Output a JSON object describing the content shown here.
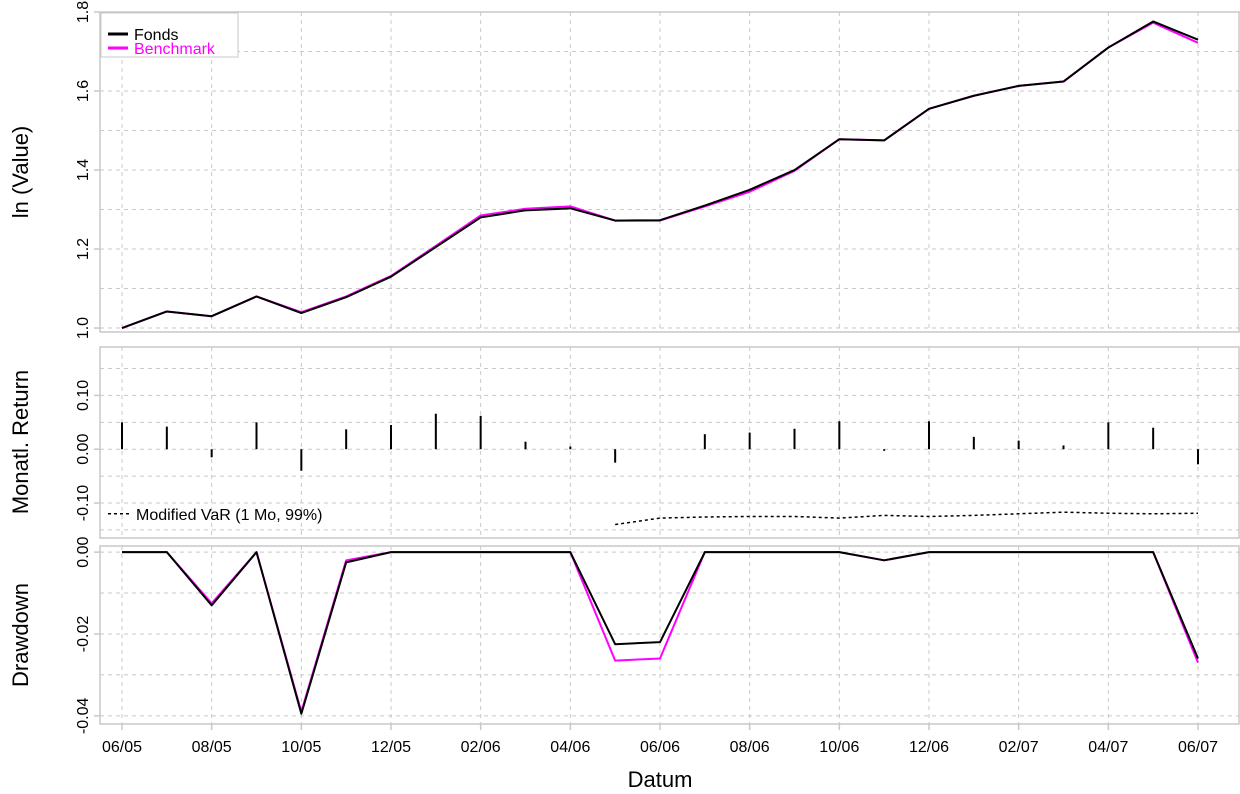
{
  "colors": {
    "fonds": "#000000",
    "benchmark": "#ff00ff",
    "grid": "#c8c8c8"
  },
  "chart_data": {
    "type": "line",
    "x_ticks": [
      "06/05",
      "08/05",
      "10/05",
      "12/05",
      "02/06",
      "04/06",
      "06/06",
      "08/06",
      "10/06",
      "12/06",
      "02/07",
      "04/07",
      "06/07"
    ],
    "xlabel": "Datum",
    "x": [
      "2005-06",
      "2005-07",
      "2005-08",
      "2005-09",
      "2005-10",
      "2005-11",
      "2005-12",
      "2006-01",
      "2006-02",
      "2006-03",
      "2006-04",
      "2006-05",
      "2006-06",
      "2006-07",
      "2006-08",
      "2006-09",
      "2006-10",
      "2006-11",
      "2006-12",
      "2007-01",
      "2007-02",
      "2007-03",
      "2007-04",
      "2007-05",
      "2007-06"
    ],
    "legend": {
      "entries": [
        "Fonds",
        "Benchmark"
      ],
      "position": "top-left"
    },
    "panels": [
      {
        "id": "value",
        "ylabel": "ln (Value)",
        "ylim": [
          0.99,
          1.8
        ],
        "yticks": [
          1.0,
          1.2,
          1.4,
          1.6,
          1.8
        ],
        "ytick_labels": [
          "1.0",
          "1.2",
          "1.4",
          "1.6",
          "1.8"
        ],
        "series": [
          {
            "name": "Fonds",
            "values": [
              1.0,
              1.042,
              1.03,
              1.08,
              1.038,
              1.078,
              1.13,
              1.205,
              1.28,
              1.298,
              1.303,
              1.272,
              1.273,
              1.31,
              1.35,
              1.4,
              1.478,
              1.475,
              1.555,
              1.588,
              1.613,
              1.624,
              1.71,
              1.776,
              1.73
            ]
          },
          {
            "name": "Benchmark",
            "values": [
              1.0,
              1.042,
              1.03,
              1.08,
              1.04,
              1.08,
              1.132,
              1.208,
              1.285,
              1.302,
              1.308,
              1.272,
              1.272,
              1.308,
              1.345,
              1.398,
              1.478,
              1.475,
              1.555,
              1.588,
              1.613,
              1.624,
              1.71,
              1.773,
              1.722
            ]
          }
        ]
      },
      {
        "id": "returns",
        "type": "bar",
        "ylabel": "Monatl. Return",
        "ylim": [
          -0.165,
          0.19
        ],
        "yticks": [
          -0.1,
          0.0,
          0.1
        ],
        "ytick_labels": [
          "-0.10",
          "0.00",
          "0.10"
        ],
        "series": [
          {
            "name": "Fonds",
            "values": [
              0.05,
              0.042,
              -0.015,
              0.05,
              -0.04,
              0.037,
              0.045,
              0.066,
              0.062,
              0.014,
              0.005,
              -0.025,
              0.0,
              0.028,
              0.031,
              0.038,
              0.052,
              -0.003,
              0.052,
              0.023,
              0.016,
              0.007,
              0.05,
              0.04,
              -0.028
            ]
          }
        ],
        "var_line": {
          "label": "Modified VaR (1 Mo, 99%)",
          "x": [
            "2006-05",
            "2006-06",
            "2006-07",
            "2006-08",
            "2006-09",
            "2006-10",
            "2006-11",
            "2006-12",
            "2007-01",
            "2007-02",
            "2007-03",
            "2007-04",
            "2007-05",
            "2007-06"
          ],
          "values": [
            -0.14,
            -0.128,
            -0.126,
            -0.125,
            -0.125,
            -0.128,
            -0.123,
            -0.125,
            -0.123,
            -0.12,
            -0.117,
            -0.119,
            -0.12,
            -0.119
          ]
        }
      },
      {
        "id": "drawdown",
        "ylabel": "Drawdown",
        "ylim": [
          -0.042,
          0.0015
        ],
        "yticks": [
          -0.04,
          -0.02,
          0.0
        ],
        "ytick_labels": [
          "-0.04",
          "-0.02",
          "0.00"
        ],
        "series": [
          {
            "name": "Fonds",
            "values": [
              0.0,
              0.0,
              -0.013,
              0.0,
              -0.0395,
              -0.0025,
              0.0,
              0.0,
              0.0,
              0.0,
              0.0,
              -0.0225,
              -0.022,
              0.0,
              0.0,
              0.0,
              0.0,
              -0.002,
              0.0,
              0.0,
              0.0,
              0.0,
              0.0,
              0.0,
              -0.026
            ]
          },
          {
            "name": "Benchmark",
            "values": [
              0.0,
              0.0,
              -0.0125,
              0.0,
              -0.039,
              -0.002,
              0.0,
              0.0,
              0.0,
              0.0,
              0.0,
              -0.0265,
              -0.026,
              0.0,
              0.0,
              0.0,
              0.0,
              -0.002,
              0.0,
              0.0,
              0.0,
              0.0,
              0.0,
              0.0,
              -0.027
            ]
          }
        ]
      }
    ]
  }
}
